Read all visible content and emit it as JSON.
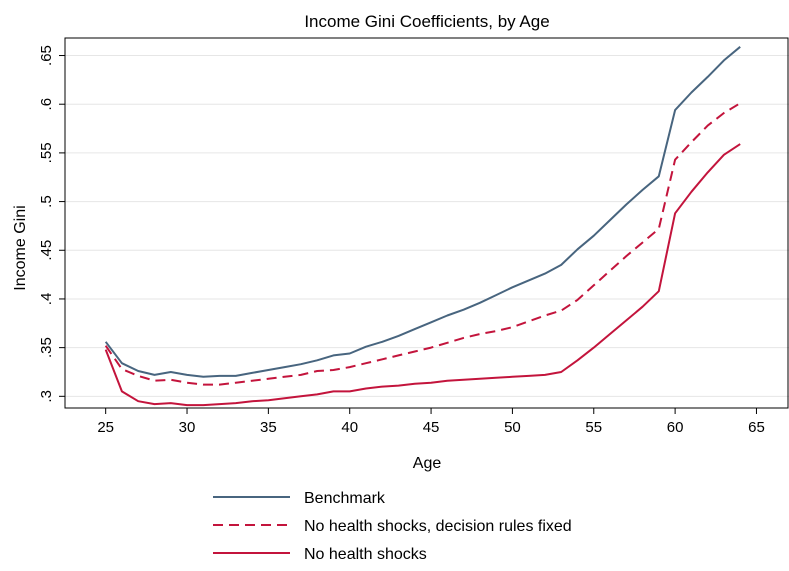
{
  "chart_data": {
    "type": "line",
    "title": "Income Gini Coefficients, by Age",
    "xlabel": "Age",
    "ylabel": "Income Gini",
    "xlim": [
      22.5,
      67
    ],
    "ylim": [
      0.288,
      0.668
    ],
    "xticks": [
      25,
      30,
      35,
      40,
      45,
      50,
      55,
      60,
      65
    ],
    "yticks": [
      0.3,
      0.35,
      0.4,
      0.45,
      0.5,
      0.55,
      0.6,
      0.65
    ],
    "xtick_labels": [
      "25",
      "30",
      "35",
      "40",
      "45",
      "50",
      "55",
      "60",
      "65"
    ],
    "ytick_labels": [
      ".3",
      ".35",
      ".4",
      ".45",
      ".5",
      ".55",
      ".6",
      ".65"
    ],
    "grid": true,
    "legend_position": "bottom",
    "x": [
      25,
      26,
      27,
      28,
      29,
      30,
      31,
      32,
      33,
      34,
      35,
      36,
      37,
      38,
      39,
      40,
      41,
      42,
      43,
      44,
      45,
      46,
      47,
      48,
      49,
      50,
      51,
      52,
      53,
      54,
      55,
      56,
      57,
      58,
      59,
      60,
      61,
      62,
      63,
      64
    ],
    "series": [
      {
        "name": "Benchmark",
        "color": "#48657f",
        "dash": "solid",
        "values": [
          0.356,
          0.334,
          0.326,
          0.322,
          0.325,
          0.322,
          0.32,
          0.321,
          0.321,
          0.324,
          0.327,
          0.33,
          0.333,
          0.337,
          0.342,
          0.344,
          0.351,
          0.356,
          0.362,
          0.369,
          0.376,
          0.383,
          0.389,
          0.396,
          0.404,
          0.412,
          0.419,
          0.426,
          0.435,
          0.451,
          0.465,
          0.481,
          0.497,
          0.512,
          0.526,
          0.594,
          0.612,
          0.628,
          0.645,
          0.659
        ]
      },
      {
        "name": "No health shocks, decision rules fixed",
        "color": "#c3143c",
        "dash": "dashed",
        "values": [
          0.352,
          0.328,
          0.321,
          0.316,
          0.317,
          0.314,
          0.312,
          0.312,
          0.314,
          0.316,
          0.318,
          0.32,
          0.322,
          0.326,
          0.327,
          0.33,
          0.334,
          0.338,
          0.342,
          0.346,
          0.35,
          0.355,
          0.36,
          0.364,
          0.367,
          0.371,
          0.377,
          0.383,
          0.388,
          0.399,
          0.414,
          0.429,
          0.444,
          0.458,
          0.472,
          0.543,
          0.561,
          0.578,
          0.591,
          0.601
        ]
      },
      {
        "name": "No health shocks",
        "color": "#c3143c",
        "dash": "solid",
        "values": [
          0.348,
          0.305,
          0.295,
          0.292,
          0.293,
          0.291,
          0.291,
          0.292,
          0.293,
          0.295,
          0.296,
          0.298,
          0.3,
          0.302,
          0.305,
          0.305,
          0.308,
          0.31,
          0.311,
          0.313,
          0.314,
          0.316,
          0.317,
          0.318,
          0.319,
          0.32,
          0.321,
          0.322,
          0.325,
          0.337,
          0.35,
          0.364,
          0.378,
          0.392,
          0.408,
          0.488,
          0.51,
          0.53,
          0.548,
          0.559
        ]
      }
    ]
  }
}
